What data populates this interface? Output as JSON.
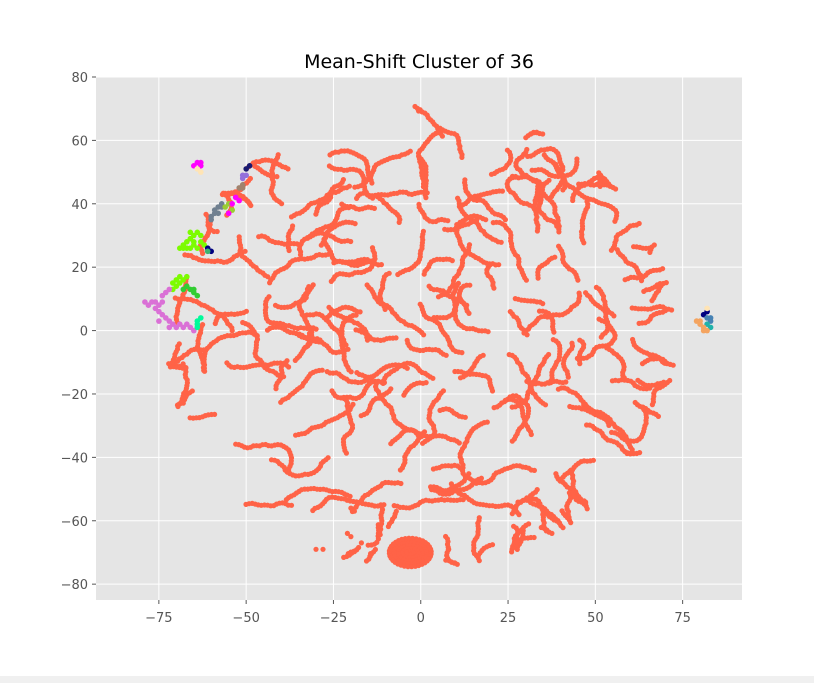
{
  "chart_data": {
    "type": "scatter",
    "title": "Mean-Shift Cluster of 36",
    "xlabel": "",
    "ylabel": "",
    "xlim": [
      -93,
      92
    ],
    "ylim": [
      -85,
      80
    ],
    "xticks": [
      -75,
      -50,
      -25,
      0,
      25,
      50,
      75
    ],
    "yticks": [
      -80,
      -60,
      -40,
      -20,
      0,
      20,
      40,
      60,
      80
    ],
    "xtick_labels": [
      "−75",
      "−50",
      "−25",
      "0",
      "25",
      "50",
      "75"
    ],
    "ytick_labels": [
      "−80",
      "−60",
      "−40",
      "−20",
      "0",
      "20",
      "40",
      "60",
      "80"
    ],
    "grid": true,
    "background": "#e5e5e5",
    "grid_color": "#ffffff",
    "main_cluster": {
      "color": "#ff6347",
      "center": [
        0,
        -2
      ],
      "radius": 73,
      "dense_blob": {
        "center": [
          -3,
          -70
        ],
        "radius": 7
      }
    },
    "series": [
      {
        "color": "#ff00ff",
        "points": [
          [
            -64,
            53
          ],
          [
            -63,
            53
          ],
          [
            -65,
            52
          ],
          [
            -63,
            52
          ]
        ]
      },
      {
        "color": "#ffe4b5",
        "points": [
          [
            -64,
            51
          ],
          [
            -63,
            50
          ]
        ]
      },
      {
        "color": "#191970",
        "points": [
          [
            -49,
            52
          ],
          [
            -50,
            51
          ]
        ]
      },
      {
        "color": "#9370db",
        "points": [
          [
            -50,
            49
          ],
          [
            -51,
            48
          ],
          [
            -51,
            49
          ]
        ]
      },
      {
        "color": "#a0826d",
        "points": [
          [
            -51,
            46
          ],
          [
            -52,
            45
          ],
          [
            -51,
            45
          ]
        ]
      },
      {
        "color": "#708090",
        "points": [
          [
            -57,
            40
          ],
          [
            -58,
            39
          ],
          [
            -59,
            38
          ],
          [
            -59,
            37
          ],
          [
            -60,
            36
          ],
          [
            -60,
            35
          ],
          [
            -58,
            37
          ],
          [
            -57,
            39
          ]
        ]
      },
      {
        "color": "#9acd32",
        "points": [
          [
            -55,
            40
          ],
          [
            -54,
            38
          ],
          [
            -56,
            39
          ]
        ]
      },
      {
        "color": "#ff00ff",
        "points": [
          [
            -53,
            42
          ],
          [
            -52,
            41
          ],
          [
            -54,
            40
          ],
          [
            -55,
            37
          ]
        ]
      },
      {
        "color": "#7cfc00",
        "points": [
          [
            -69,
            26
          ],
          [
            -68,
            27
          ],
          [
            -67,
            28
          ],
          [
            -66,
            29
          ],
          [
            -65,
            30
          ],
          [
            -66,
            31
          ],
          [
            -64,
            31
          ],
          [
            -67,
            26
          ],
          [
            -65,
            27
          ],
          [
            -64,
            26
          ],
          [
            -63,
            28
          ],
          [
            -62,
            27
          ],
          [
            -68,
            26
          ],
          [
            -66,
            26
          ],
          [
            -65,
            28
          ],
          [
            -63,
            30
          ]
        ]
      },
      {
        "color": "#000080",
        "points": [
          [
            -60,
            25
          ],
          [
            -61,
            26
          ]
        ]
      },
      {
        "color": "#3cb371",
        "points": [
          [
            -61,
            25
          ]
        ]
      },
      {
        "color": "#7cfc00",
        "points": [
          [
            -71,
            13
          ],
          [
            -70,
            14
          ],
          [
            -70,
            16
          ],
          [
            -69,
            17
          ],
          [
            -68,
            16
          ],
          [
            -67,
            17
          ],
          [
            -71,
            15
          ],
          [
            -69,
            15
          ]
        ]
      },
      {
        "color": "#32cd32",
        "points": [
          [
            -67,
            14
          ],
          [
            -66,
            13
          ],
          [
            -65,
            13
          ],
          [
            -65,
            12
          ],
          [
            -64,
            11
          ],
          [
            -68,
            13
          ]
        ]
      },
      {
        "color": "#da70d6",
        "points": [
          [
            -79,
            9
          ],
          [
            -78,
            8
          ],
          [
            -77,
            9
          ],
          [
            -76,
            9
          ],
          [
            -75,
            8
          ],
          [
            -74,
            9
          ],
          [
            -76,
            7
          ],
          [
            -75,
            6
          ],
          [
            -74,
            5
          ],
          [
            -73,
            4
          ],
          [
            -72,
            3
          ],
          [
            -71,
            2
          ],
          [
            -70,
            1
          ],
          [
            -69,
            2
          ],
          [
            -68,
            1
          ],
          [
            -67,
            2
          ],
          [
            -66,
            1
          ],
          [
            -65,
            0
          ],
          [
            -74,
            11
          ],
          [
            -73,
            12
          ],
          [
            -72,
            13
          ],
          [
            -75,
            3
          ],
          [
            -72,
            1
          ]
        ]
      },
      {
        "color": "#00fa9a",
        "points": [
          [
            -64,
            2
          ],
          [
            -64,
            3
          ],
          [
            -64,
            1
          ],
          [
            -63,
            4
          ]
        ]
      },
      {
        "color": "#000080",
        "points": [
          [
            82,
            6
          ],
          [
            81,
            5
          ]
        ]
      },
      {
        "color": "#ffe4b5",
        "points": [
          [
            82,
            7
          ]
        ]
      },
      {
        "color": "#4682b4",
        "points": [
          [
            83,
            3
          ],
          [
            82,
            4
          ],
          [
            83,
            4
          ]
        ]
      },
      {
        "color": "#20b2aa",
        "points": [
          [
            82,
            2
          ],
          [
            83,
            1
          ]
        ]
      },
      {
        "color": "#f4a460",
        "points": [
          [
            79,
            3
          ],
          [
            80,
            2
          ],
          [
            81,
            1
          ],
          [
            81,
            0
          ],
          [
            82,
            0
          ],
          [
            80,
            3
          ]
        ]
      }
    ]
  }
}
